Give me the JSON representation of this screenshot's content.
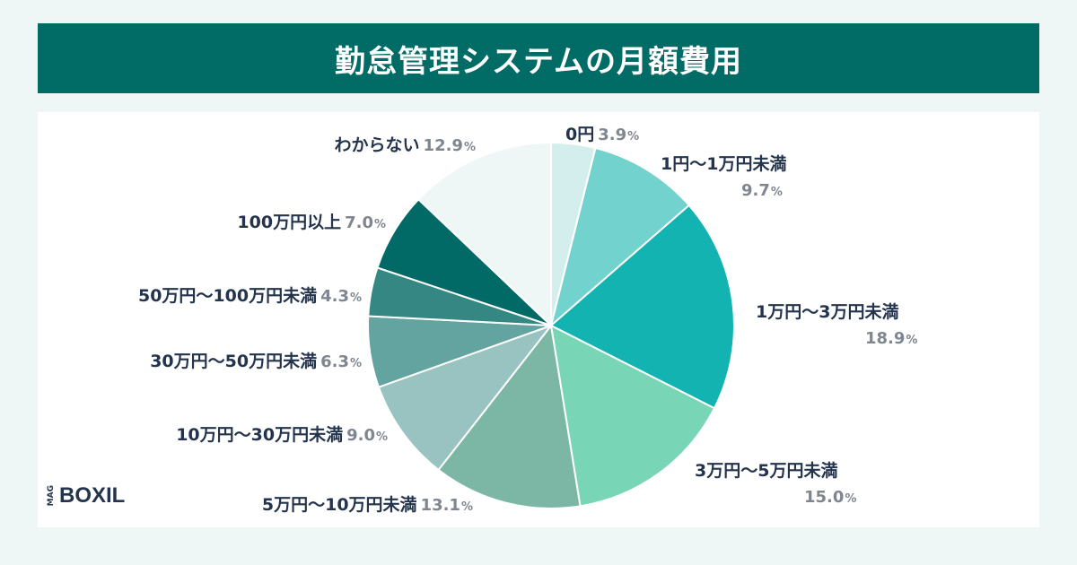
{
  "header": {
    "title": "勤怠管理システムの月額費用"
  },
  "logo": {
    "prefix": "MAG",
    "name": "BOXIL"
  },
  "chart_data": {
    "type": "pie",
    "title": "勤怠管理システムの月額費用",
    "start_angle": "12 o'clock",
    "direction": "clockwise",
    "percent_symbol": "%",
    "slices": [
      {
        "label": "0円",
        "value": 3.9,
        "display": "3.9",
        "color": "#d4eeed"
      },
      {
        "label": "1円～1万円未満",
        "value": 9.7,
        "display": "9.7",
        "color": "#72d2cd"
      },
      {
        "label": "1万円～3万円未満",
        "value": 18.9,
        "display": "18.9",
        "color": "#12b3b1"
      },
      {
        "label": "3万円～5万円未満",
        "value": 15.0,
        "display": "15.0",
        "color": "#78d5b5"
      },
      {
        "label": "5万円～10万円未満",
        "value": 13.1,
        "display": "13.1",
        "color": "#7cb7a5"
      },
      {
        "label": "10万円～30万円未満",
        "value": 9.0,
        "display": "9.0",
        "color": "#98c3c1"
      },
      {
        "label": "30万円～50万円未満",
        "value": 6.3,
        "display": "6.3",
        "color": "#63a4a1"
      },
      {
        "label": "50万円～100万円未満",
        "value": 4.3,
        "display": "4.3",
        "color": "#358784"
      },
      {
        "label": "100万円以上",
        "value": 7.0,
        "display": "7.0",
        "color": "#016a66"
      },
      {
        "label": "わからない",
        "value": 12.9,
        "display": "12.9",
        "color": "#eef6f6"
      }
    ]
  }
}
